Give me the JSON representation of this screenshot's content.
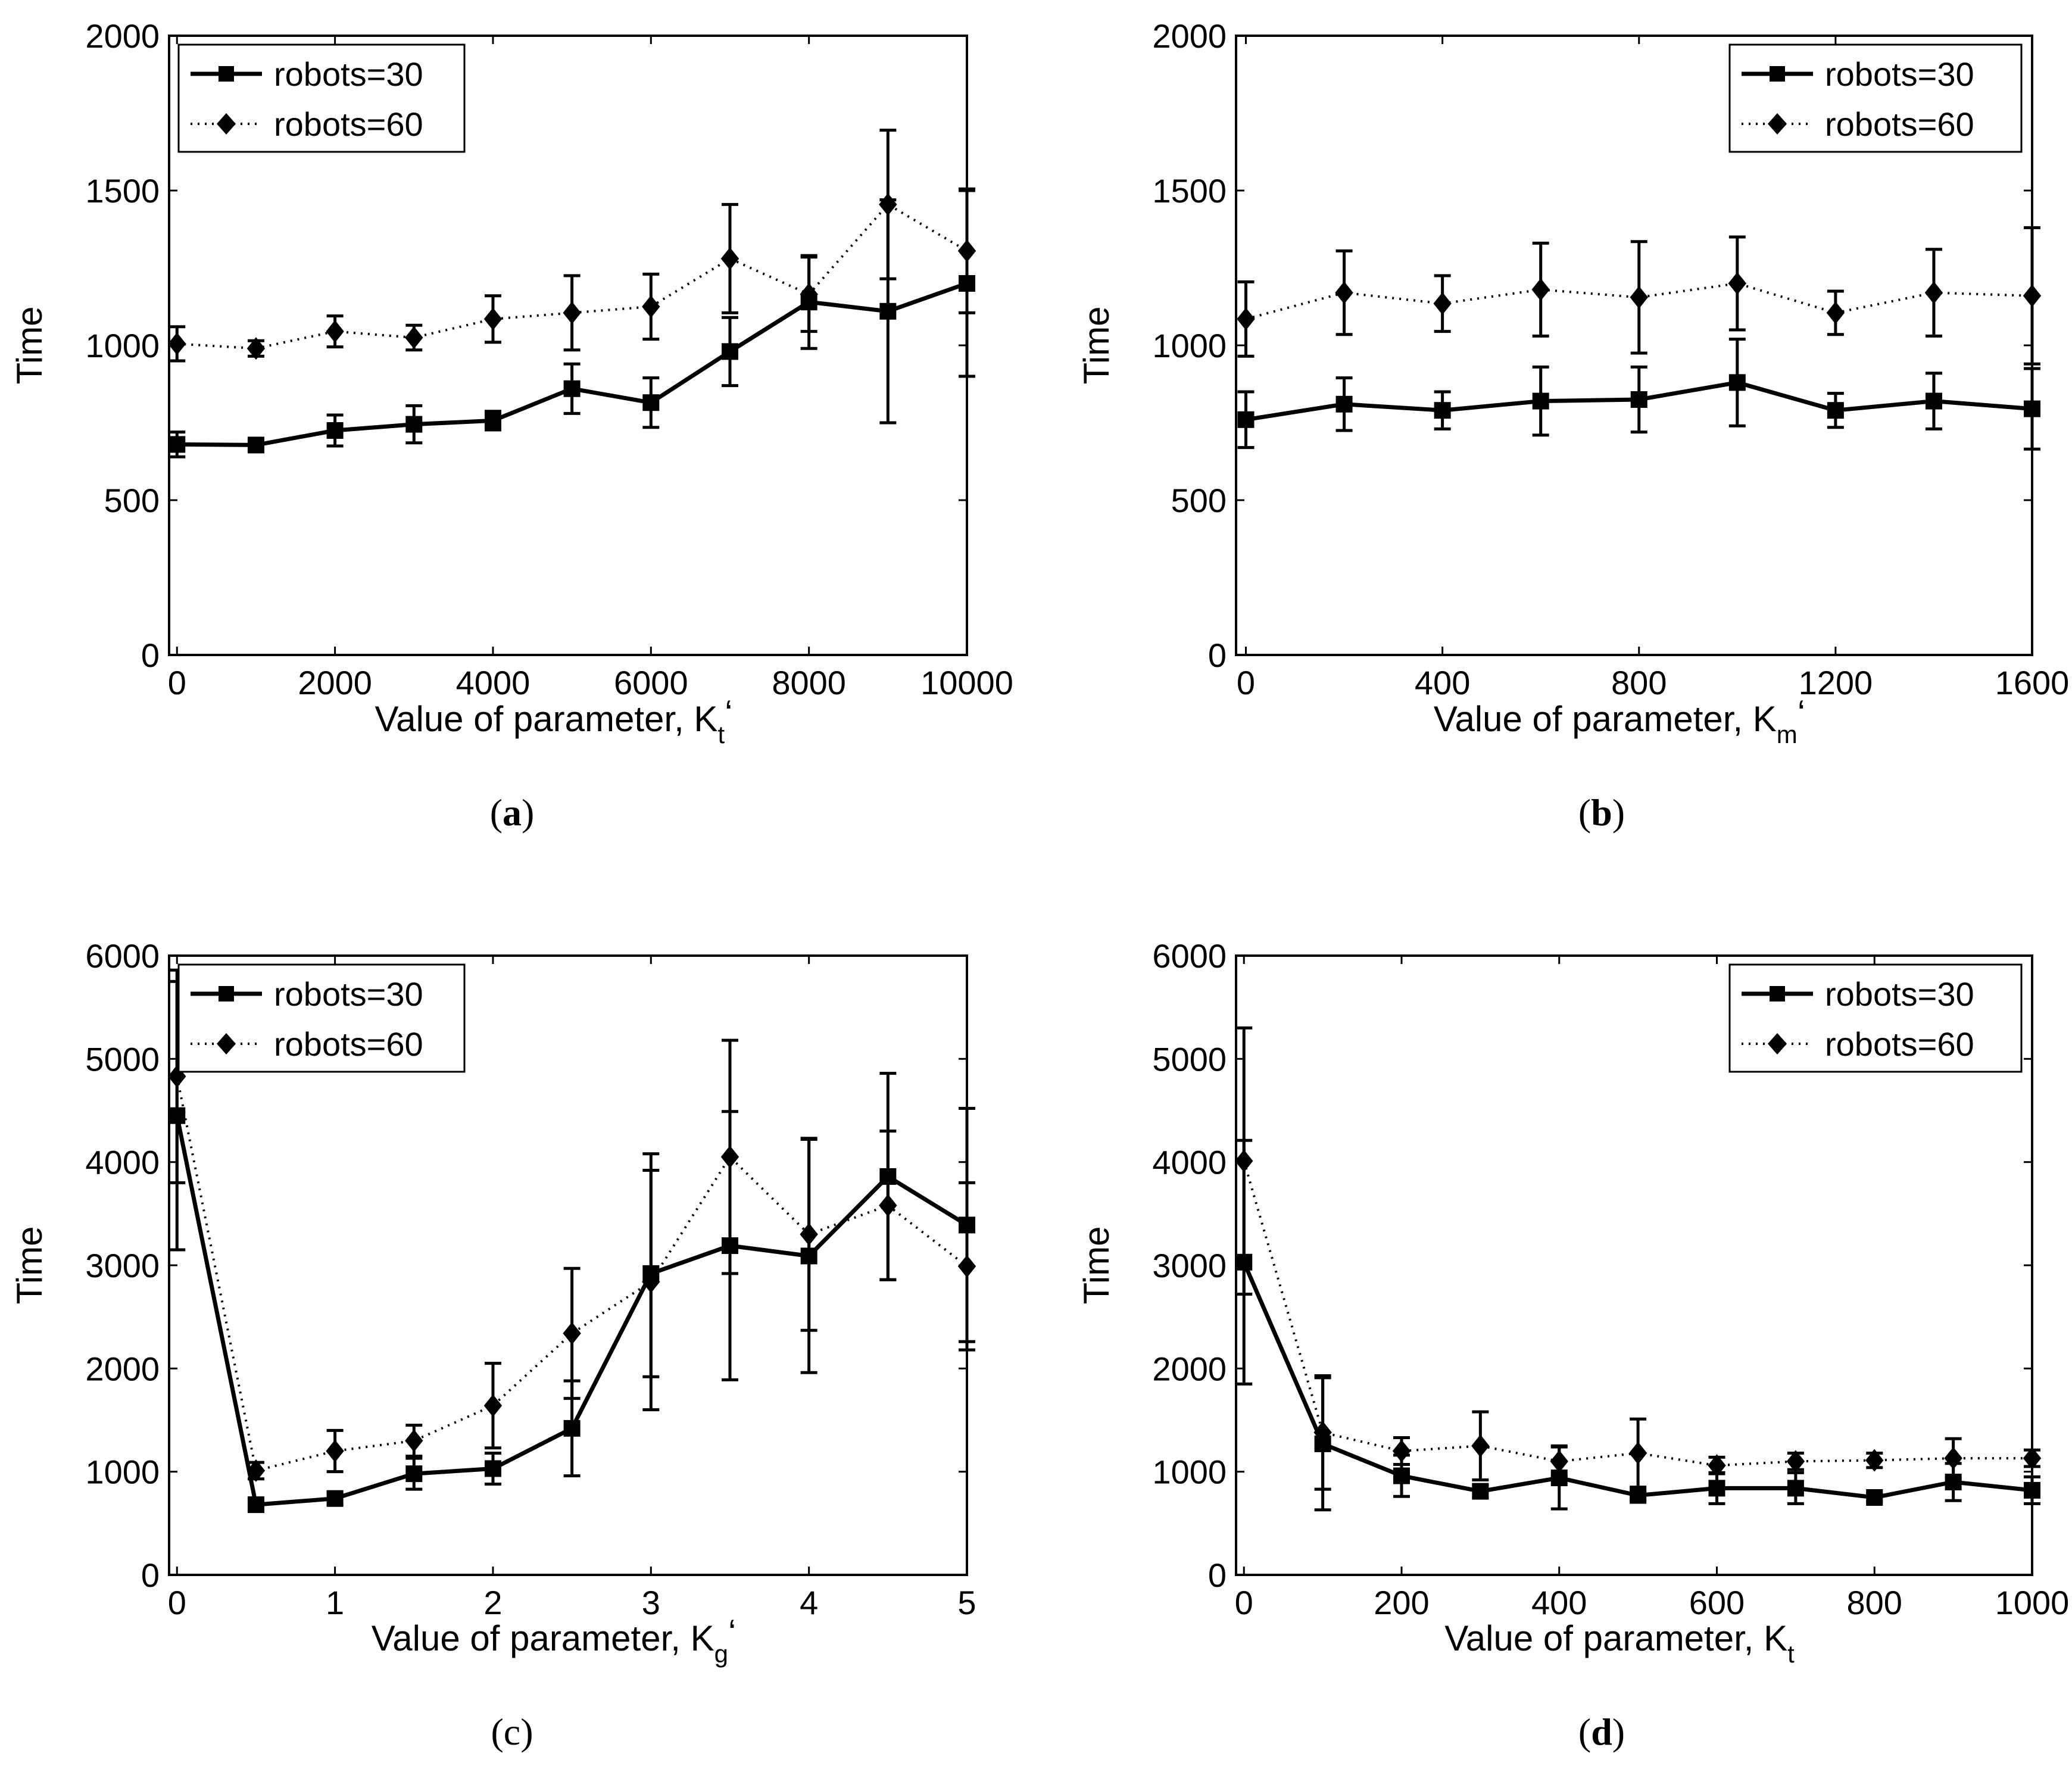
{
  "chart_data": [
    {
      "type": "line",
      "caption_letter": "a",
      "xlabel_prefix": "Value of parameter, K",
      "xlabel_sub": "t",
      "xlabel_suffix": "‘",
      "ylabel": "Time",
      "xlim": [
        -100,
        10000
      ],
      "ylim": [
        0,
        2000
      ],
      "xticks": [
        0,
        2000,
        4000,
        6000,
        8000,
        10000
      ],
      "yticks": [
        0,
        500,
        1000,
        1500,
        2000
      ],
      "legend_position": "top-left",
      "series": [
        {
          "name": "robots=30",
          "marker": "square",
          "style": "solid",
          "x": [
            0,
            1000,
            2000,
            3000,
            4000,
            5000,
            6000,
            7000,
            8000,
            9000,
            10000
          ],
          "y": [
            680,
            678,
            725,
            745,
            757,
            860,
            815,
            980,
            1140,
            1110,
            1200
          ],
          "err": [
            40,
            15,
            50,
            60,
            30,
            80,
            80,
            110,
            150,
            360,
            300
          ]
        },
        {
          "name": "robots=60",
          "marker": "diamond",
          "style": "dotted",
          "x": [
            0,
            1000,
            2000,
            3000,
            4000,
            5000,
            6000,
            7000,
            8000,
            9000,
            10000
          ],
          "y": [
            1005,
            990,
            1045,
            1025,
            1085,
            1105,
            1125,
            1280,
            1165,
            1455,
            1305
          ],
          "err": [
            55,
            25,
            50,
            40,
            75,
            120,
            105,
            175,
            120,
            240,
            200
          ]
        }
      ]
    },
    {
      "type": "line",
      "caption_letter": "b",
      "xlabel_prefix": "Value of parameter, K",
      "xlabel_sub": "m",
      "xlabel_suffix": "‘",
      "ylabel": "Time",
      "xlim": [
        -20,
        1600
      ],
      "ylim": [
        0,
        2000
      ],
      "xticks": [
        0,
        400,
        800,
        1200,
        1600
      ],
      "yticks": [
        0,
        500,
        1000,
        1500,
        2000
      ],
      "legend_position": "top-right",
      "series": [
        {
          "name": "robots=30",
          "marker": "square",
          "style": "solid",
          "x": [
            0,
            200,
            400,
            600,
            800,
            1000,
            1200,
            1400,
            1600
          ],
          "y": [
            760,
            810,
            790,
            820,
            825,
            880,
            790,
            820,
            795
          ],
          "err": [
            90,
            85,
            60,
            110,
            105,
            140,
            55,
            90,
            130
          ]
        },
        {
          "name": "robots=60",
          "marker": "diamond",
          "style": "dotted",
          "x": [
            0,
            200,
            400,
            600,
            800,
            1000,
            1200,
            1400,
            1600
          ],
          "y": [
            1085,
            1170,
            1135,
            1180,
            1155,
            1200,
            1105,
            1170,
            1160
          ],
          "err": [
            120,
            135,
            90,
            150,
            180,
            150,
            70,
            140,
            220
          ]
        }
      ]
    },
    {
      "type": "line",
      "caption_letter": "c",
      "xlabel_prefix": "Value of parameter, K",
      "xlabel_sub": "g",
      "xlabel_suffix": "‘",
      "ylabel": "Time",
      "xlim": [
        -0.05,
        5
      ],
      "ylim": [
        0,
        6000
      ],
      "xticks": [
        0,
        1,
        2,
        3,
        4,
        5
      ],
      "yticks": [
        0,
        1000,
        2000,
        3000,
        4000,
        5000,
        6000
      ],
      "legend_position": "top-left",
      "series": [
        {
          "name": "robots=30",
          "marker": "square",
          "style": "solid",
          "x": [
            0,
            0.5,
            1,
            1.5,
            2,
            2.5,
            3,
            3.5,
            4,
            4.5,
            5
          ],
          "y": [
            4450,
            680,
            740,
            980,
            1030,
            1420,
            2920,
            3190,
            3090,
            3860,
            3390
          ],
          "err": [
            1300,
            60,
            60,
            150,
            150,
            460,
            1000,
            1300,
            1130,
            1000,
            1130
          ]
        },
        {
          "name": "robots=60",
          "marker": "diamond",
          "style": "dotted",
          "x": [
            0,
            0.5,
            1,
            1.5,
            2,
            2.5,
            3,
            3.5,
            4,
            4.5,
            5
          ],
          "y": [
            4830,
            1010,
            1200,
            1300,
            1640,
            2340,
            2840,
            4050,
            3300,
            3580,
            2990
          ],
          "err": [
            1030,
            80,
            200,
            150,
            410,
            630,
            1240,
            1130,
            930,
            720,
            810
          ]
        }
      ]
    },
    {
      "type": "line",
      "caption_letter": "d",
      "xlabel_prefix": "Value of parameter, K",
      "xlabel_sub": "t",
      "xlabel_suffix": "",
      "ylabel": "Time",
      "xlim": [
        -10,
        1000
      ],
      "ylim": [
        0,
        6000
      ],
      "xticks": [
        0,
        200,
        400,
        600,
        800,
        1000
      ],
      "yticks": [
        0,
        1000,
        2000,
        3000,
        4000,
        5000,
        6000
      ],
      "legend_position": "top-right",
      "series": [
        {
          "name": "robots=30",
          "marker": "square",
          "style": "solid",
          "x": [
            0,
            100,
            200,
            300,
            400,
            500,
            600,
            700,
            800,
            900,
            1000
          ],
          "y": [
            3030,
            1270,
            960,
            810,
            940,
            770,
            840,
            840,
            750,
            900,
            820
          ],
          "err": [
            1180,
            640,
            200,
            60,
            300,
            40,
            150,
            150,
            40,
            180,
            130
          ]
        },
        {
          "name": "robots=60",
          "marker": "diamond",
          "style": "dotted",
          "x": [
            0,
            100,
            200,
            300,
            400,
            500,
            600,
            700,
            800,
            900,
            1000
          ],
          "y": [
            4010,
            1380,
            1200,
            1250,
            1100,
            1180,
            1060,
            1100,
            1110,
            1130,
            1130
          ],
          "err": [
            1290,
            550,
            130,
            330,
            150,
            330,
            80,
            80,
            70,
            190,
            80
          ]
        }
      ]
    }
  ]
}
